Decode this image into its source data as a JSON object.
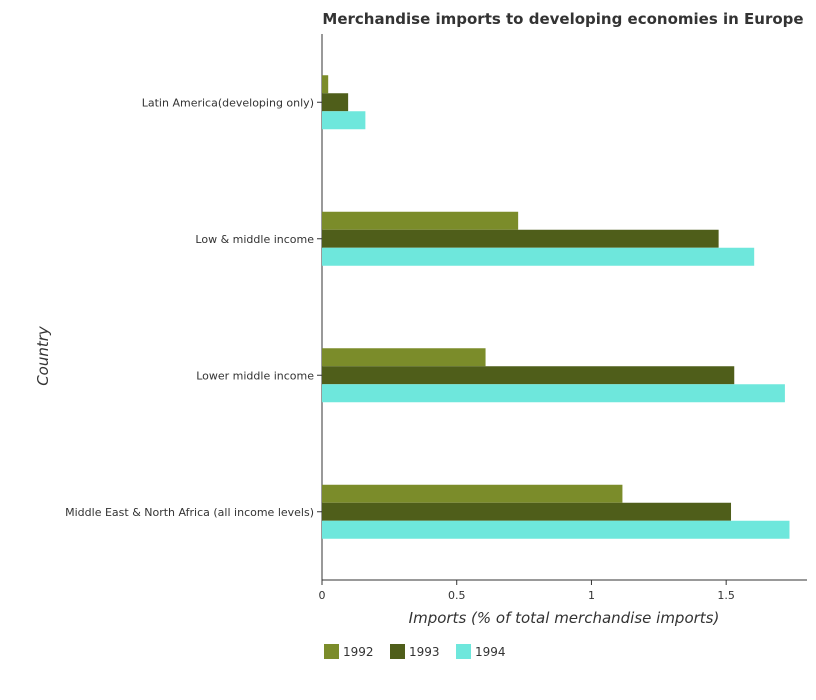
{
  "chart_data": {
    "type": "bar",
    "orientation": "horizontal",
    "title": "Merchandise imports to developing economies in Europe",
    "xlabel": "Imports (% of total merchandise imports)",
    "ylabel": "Country",
    "xlim": [
      0,
      1.8
    ],
    "xticks": [
      0,
      0.5,
      1,
      1.5
    ],
    "xtick_labels": [
      "0",
      "0.5",
      "1",
      "1.5"
    ],
    "categories": [
      "Latin America(developing only)",
      "Low & middle income",
      "Lower middle income",
      "Middle East & North Africa (all income levels)"
    ],
    "series": [
      {
        "name": "1992",
        "color": "#7b8c2a",
        "values": [
          0.023,
          0.728,
          0.607,
          1.115
        ]
      },
      {
        "name": "1993",
        "color": "#4f5e1a",
        "values": [
          0.097,
          1.472,
          1.53,
          1.518
        ]
      },
      {
        "name": "1994",
        "color": "#6ee7dc",
        "values": [
          0.161,
          1.604,
          1.718,
          1.735
        ]
      }
    ],
    "grid": false,
    "legend_position": "bottom"
  }
}
